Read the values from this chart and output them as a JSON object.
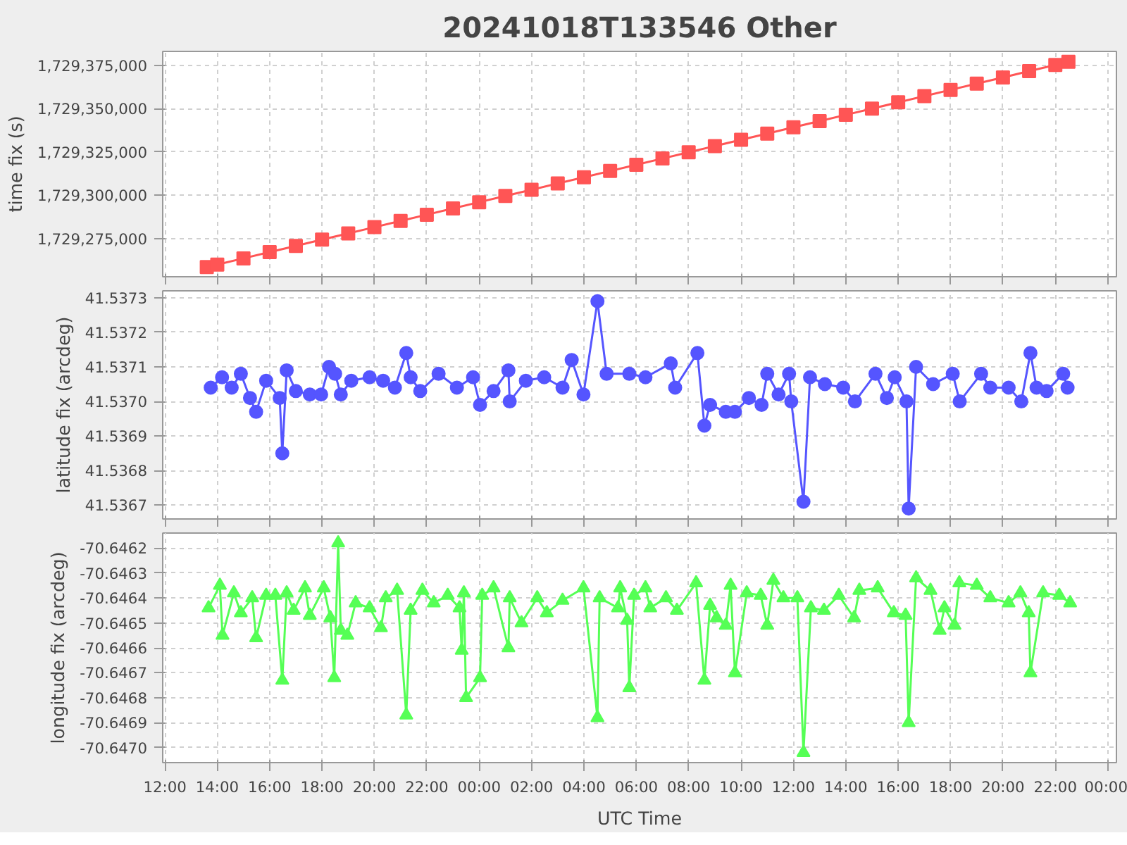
{
  "chart_data": [
    {
      "type": "line",
      "title": "20241018T133546 Other",
      "ylabel": "time fix (s)",
      "marker": "square",
      "grid": true,
      "tick_labels": "y",
      "xlim": [
        "2024-10-18T11:55",
        "2024-10-20T00:20"
      ],
      "xticks": [
        {
          "value": "2024-10-18T12:00",
          "label": null
        },
        {
          "value": "2024-10-18T14:00",
          "label": null
        },
        {
          "value": "2024-10-18T16:00",
          "label": null
        },
        {
          "value": "2024-10-18T18:00",
          "label": null
        },
        {
          "value": "2024-10-18T20:00",
          "label": null
        },
        {
          "value": "2024-10-18T22:00",
          "label": null
        },
        {
          "value": "2024-10-19T00:00",
          "label": null
        },
        {
          "value": "2024-10-19T02:00",
          "label": null
        },
        {
          "value": "2024-10-19T04:00",
          "label": null
        },
        {
          "value": "2024-10-19T06:00",
          "label": null
        },
        {
          "value": "2024-10-19T08:00",
          "label": null
        },
        {
          "value": "2024-10-19T10:00",
          "label": null
        },
        {
          "value": "2024-10-19T12:00",
          "label": null
        },
        {
          "value": "2024-10-19T14:00",
          "label": null
        },
        {
          "value": "2024-10-19T16:00",
          "label": null
        },
        {
          "value": "2024-10-19T18:00",
          "label": null
        },
        {
          "value": "2024-10-19T20:00",
          "label": null
        },
        {
          "value": "2024-10-19T22:00",
          "label": null
        },
        {
          "value": "2024-10-20T00:00",
          "label": null
        }
      ],
      "ylim": [
        1729253000,
        1729383000
      ],
      "yticks": [
        {
          "value": 1729275000,
          "label": "1,729,275,000"
        },
        {
          "value": 1729300000,
          "label": "1,729,300,000"
        },
        {
          "value": 1729325000,
          "label": "1,729,325,000"
        },
        {
          "value": 1729350000,
          "label": "1,729,350,000"
        },
        {
          "value": 1729375000,
          "label": "1,729,375,000"
        }
      ],
      "series": [
        {
          "color": "#ff5555",
          "x": [
            "2024-10-18T13:36",
            "2024-10-18T14:00",
            "2024-10-18T15:00",
            "2024-10-18T16:00",
            "2024-10-18T17:00",
            "2024-10-18T18:00",
            "2024-10-18T19:00",
            "2024-10-18T20:00",
            "2024-10-18T21:00",
            "2024-10-18T22:00",
            "2024-10-18T23:00",
            "2024-10-19T00:00",
            "2024-10-19T01:00",
            "2024-10-19T02:00",
            "2024-10-19T03:00",
            "2024-10-19T04:00",
            "2024-10-19T05:00",
            "2024-10-19T06:00",
            "2024-10-19T07:00",
            "2024-10-19T08:00",
            "2024-10-19T09:00",
            "2024-10-19T10:00",
            "2024-10-19T11:00",
            "2024-10-19T12:00",
            "2024-10-19T13:00",
            "2024-10-19T14:00",
            "2024-10-19T15:00",
            "2024-10-19T16:00",
            "2024-10-19T17:00",
            "2024-10-19T18:00",
            "2024-10-19T19:00",
            "2024-10-19T20:00",
            "2024-10-19T21:00",
            "2024-10-19T22:00",
            "2024-10-19T22:30"
          ],
          "values": [
            1729258560,
            1729260000,
            1729263600,
            1729267200,
            1729270800,
            1729274400,
            1729278000,
            1729281600,
            1729285200,
            1729288800,
            1729292400,
            1729296000,
            1729299600,
            1729303200,
            1729306800,
            1729310400,
            1729314000,
            1729317600,
            1729321200,
            1729324800,
            1729328400,
            1729332000,
            1729335600,
            1729339200,
            1729342800,
            1729346400,
            1729350000,
            1729353600,
            1729357200,
            1729360800,
            1729364400,
            1729368000,
            1729371600,
            1729375200,
            1729377000
          ]
        }
      ]
    },
    {
      "type": "line",
      "ylabel": "latitude fix (arcdeg)",
      "marker": "circle",
      "grid": true,
      "tick_labels": "y",
      "xlim": [
        "2024-10-18T11:55",
        "2024-10-20T00:20"
      ],
      "xticks": [
        {
          "value": "2024-10-18T12:00",
          "label": null
        },
        {
          "value": "2024-10-18T14:00",
          "label": null
        },
        {
          "value": "2024-10-18T16:00",
          "label": null
        },
        {
          "value": "2024-10-18T18:00",
          "label": null
        },
        {
          "value": "2024-10-18T20:00",
          "label": null
        },
        {
          "value": "2024-10-18T22:00",
          "label": null
        },
        {
          "value": "2024-10-19T00:00",
          "label": null
        },
        {
          "value": "2024-10-19T02:00",
          "label": null
        },
        {
          "value": "2024-10-19T04:00",
          "label": null
        },
        {
          "value": "2024-10-19T06:00",
          "label": null
        },
        {
          "value": "2024-10-19T08:00",
          "label": null
        },
        {
          "value": "2024-10-19T10:00",
          "label": null
        },
        {
          "value": "2024-10-19T12:00",
          "label": null
        },
        {
          "value": "2024-10-19T14:00",
          "label": null
        },
        {
          "value": "2024-10-19T16:00",
          "label": null
        },
        {
          "value": "2024-10-19T18:00",
          "label": null
        },
        {
          "value": "2024-10-19T20:00",
          "label": null
        },
        {
          "value": "2024-10-19T22:00",
          "label": null
        },
        {
          "value": "2024-10-20T00:00",
          "label": null
        }
      ],
      "ylim": [
        41.53666,
        41.53732
      ],
      "yticks": [
        41.5367,
        41.5368,
        41.5369,
        {
          "value": 41.537,
          "label": "41.5370"
        },
        41.5371,
        41.5372,
        41.5373
      ],
      "series": [
        {
          "color": "#5555ff",
          "x": [
            "2024-10-18T13:45",
            "2024-10-18T14:11",
            "2024-10-18T14:33",
            "2024-10-18T14:54",
            "2024-10-18T15:15",
            "2024-10-18T15:29",
            "2024-10-18T15:52",
            "2024-10-18T16:23",
            "2024-10-18T16:29",
            "2024-10-18T16:39",
            "2024-10-18T17:00",
            "2024-10-18T17:32",
            "2024-10-18T17:58",
            "2024-10-18T18:16",
            "2024-10-18T18:30",
            "2024-10-18T18:43",
            "2024-10-18T19:07",
            "2024-10-18T19:49",
            "2024-10-18T20:20",
            "2024-10-18T20:47",
            "2024-10-18T21:13",
            "2024-10-18T21:23",
            "2024-10-18T21:45",
            "2024-10-18T22:27",
            "2024-10-18T23:09",
            "2024-10-18T23:46",
            "2024-10-19T00:02",
            "2024-10-19T00:33",
            "2024-10-19T01:07",
            "2024-10-19T01:10",
            "2024-10-19T01:47",
            "2024-10-19T02:29",
            "2024-10-19T03:11",
            "2024-10-19T03:32",
            "2024-10-19T03:59",
            "2024-10-19T04:31",
            "2024-10-19T04:52",
            "2024-10-19T05:44",
            "2024-10-19T06:21",
            "2024-10-19T07:19",
            "2024-10-19T07:29",
            "2024-10-19T08:20",
            "2024-10-19T08:36",
            "2024-10-19T08:49",
            "2024-10-19T09:25",
            "2024-10-19T09:46",
            "2024-10-19T10:18",
            "2024-10-19T10:47",
            "2024-10-19T11:00",
            "2024-10-19T11:26",
            "2024-10-19T11:50",
            "2024-10-19T11:55",
            "2024-10-19T12:23",
            "2024-10-19T12:38",
            "2024-10-19T13:12",
            "2024-10-19T13:54",
            "2024-10-19T14:21",
            "2024-10-19T15:08",
            "2024-10-19T15:34",
            "2024-10-19T15:52",
            "2024-10-19T16:19",
            "2024-10-19T16:24",
            "2024-10-19T16:41",
            "2024-10-19T17:20",
            "2024-10-19T18:05",
            "2024-10-19T18:21",
            "2024-10-19T19:10",
            "2024-10-19T19:31",
            "2024-10-19T20:13",
            "2024-10-19T20:42",
            "2024-10-19T21:03",
            "2024-10-19T21:17",
            "2024-10-19T21:40",
            "2024-10-19T22:18",
            "2024-10-19T22:28"
          ],
          "values": [
            41.53704,
            41.53707,
            41.53704,
            41.53708,
            41.53701,
            41.53697,
            41.53706,
            41.53701,
            41.53685,
            41.53709,
            41.53703,
            41.53702,
            41.53702,
            41.5371,
            41.53708,
            41.53702,
            41.53706,
            41.53707,
            41.53706,
            41.53704,
            41.53714,
            41.53707,
            41.53703,
            41.53708,
            41.53704,
            41.53707,
            41.53699,
            41.53703,
            41.53709,
            41.537,
            41.53706,
            41.53707,
            41.53704,
            41.53712,
            41.53702,
            41.53729,
            41.53708,
            41.53708,
            41.53707,
            41.53711,
            41.53704,
            41.53714,
            41.53693,
            41.53699,
            41.53697,
            41.53697,
            41.53701,
            41.53699,
            41.53708,
            41.53702,
            41.53708,
            41.537,
            41.53671,
            41.53707,
            41.53705,
            41.53704,
            41.537,
            41.53708,
            41.53701,
            41.53707,
            41.537,
            41.53669,
            41.5371,
            41.53705,
            41.53708,
            41.537,
            41.53708,
            41.53704,
            41.53704,
            41.537,
            41.53714,
            41.53704,
            41.53703,
            41.53708,
            41.53704
          ]
        }
      ]
    },
    {
      "type": "line",
      "xlabel": "UTC Time",
      "ylabel": "longitude fix (arcdeg)",
      "marker": "triangle",
      "grid": true,
      "xlim": [
        "2024-10-18T11:55",
        "2024-10-20T00:20"
      ],
      "xticks": [
        {
          "value": "2024-10-18T12:00",
          "label": "12:00"
        },
        {
          "value": "2024-10-18T14:00",
          "label": "14:00"
        },
        {
          "value": "2024-10-18T16:00",
          "label": "16:00"
        },
        {
          "value": "2024-10-18T18:00",
          "label": "18:00"
        },
        {
          "value": "2024-10-18T20:00",
          "label": "20:00"
        },
        {
          "value": "2024-10-18T22:00",
          "label": "22:00"
        },
        {
          "value": "2024-10-19T00:00",
          "label": "00:00"
        },
        {
          "value": "2024-10-19T02:00",
          "label": "02:00"
        },
        {
          "value": "2024-10-19T04:00",
          "label": "04:00"
        },
        {
          "value": "2024-10-19T06:00",
          "label": "06:00"
        },
        {
          "value": "2024-10-19T08:00",
          "label": "08:00"
        },
        {
          "value": "2024-10-19T10:00",
          "label": "10:00"
        },
        {
          "value": "2024-10-19T12:00",
          "label": "12:00"
        },
        {
          "value": "2024-10-19T14:00",
          "label": "14:00"
        },
        {
          "value": "2024-10-19T16:00",
          "label": "16:00"
        },
        {
          "value": "2024-10-19T18:00",
          "label": "18:00"
        },
        {
          "value": "2024-10-19T20:00",
          "label": "20:00"
        },
        {
          "value": "2024-10-19T22:00",
          "label": "22:00"
        },
        {
          "value": "2024-10-20T00:00",
          "label": "00:00"
        }
      ],
      "ylim": [
        -70.64706,
        -70.64614
      ],
      "yticks": [
        {
          "value": -70.647,
          "label": "-70.6470"
        },
        -70.6469,
        -70.6468,
        -70.6467,
        -70.6466,
        -70.6465,
        -70.6464,
        -70.6463,
        -70.6462
      ],
      "series": [
        {
          "color": "#55ff55",
          "x": [
            "2024-10-18T13:40",
            "2024-10-18T14:06",
            "2024-10-18T14:12",
            "2024-10-18T14:38",
            "2024-10-18T14:54",
            "2024-10-18T15:20",
            "2024-10-18T15:29",
            "2024-10-18T15:52",
            "2024-10-18T16:13",
            "2024-10-18T16:29",
            "2024-10-18T16:39",
            "2024-10-18T16:55",
            "2024-10-18T17:21",
            "2024-10-18T17:32",
            "2024-10-18T18:04",
            "2024-10-18T18:19",
            "2024-10-18T18:28",
            "2024-10-18T18:37",
            "2024-10-18T18:43",
            "2024-10-18T18:58",
            "2024-10-18T19:17",
            "2024-10-18T19:49",
            "2024-10-18T20:15",
            "2024-10-18T20:26",
            "2024-10-18T20:52",
            "2024-10-18T21:13",
            "2024-10-18T21:23",
            "2024-10-18T21:50",
            "2024-10-18T22:16",
            "2024-10-18T22:48",
            "2024-10-18T23:15",
            "2024-10-18T23:20",
            "2024-10-18T23:25",
            "2024-10-18T23:30",
            "2024-10-19T00:02",
            "2024-10-19T00:07",
            "2024-10-19T00:33",
            "2024-10-19T01:07",
            "2024-10-19T01:10",
            "2024-10-19T01:37",
            "2024-10-19T02:13",
            "2024-10-19T02:35",
            "2024-10-19T03:11",
            "2024-10-19T03:59",
            "2024-10-19T04:31",
            "2024-10-19T04:36",
            "2024-10-19T05:18",
            "2024-10-19T05:23",
            "2024-10-19T05:39",
            "2024-10-19T05:44",
            "2024-10-19T05:55",
            "2024-10-19T06:21",
            "2024-10-19T06:32",
            "2024-10-19T07:08",
            "2024-10-19T07:33",
            "2024-10-19T08:17",
            "2024-10-19T08:36",
            "2024-10-19T08:49",
            "2024-10-19T09:04",
            "2024-10-19T09:25",
            "2024-10-19T09:36",
            "2024-10-19T09:46",
            "2024-10-19T10:13",
            "2024-10-19T10:45",
            "2024-10-19T11:00",
            "2024-10-19T11:14",
            "2024-10-19T11:37",
            "2024-10-19T12:09",
            "2024-10-19T12:23",
            "2024-10-19T12:40",
            "2024-10-19T13:10",
            "2024-10-19T13:44",
            "2024-10-19T14:19",
            "2024-10-19T14:31",
            "2024-10-19T15:13",
            "2024-10-19T15:50",
            "2024-10-19T16:17",
            "2024-10-19T16:24",
            "2024-10-19T16:41",
            "2024-10-19T17:14",
            "2024-10-19T17:35",
            "2024-10-19T17:46",
            "2024-10-19T18:09",
            "2024-10-19T18:20",
            "2024-10-19T19:00",
            "2024-10-19T19:31",
            "2024-10-19T20:13",
            "2024-10-19T20:40",
            "2024-10-19T20:59",
            "2024-10-19T21:03",
            "2024-10-19T21:32",
            "2024-10-19T22:09",
            "2024-10-19T22:34"
          ],
          "values": [
            -70.64644,
            -70.64635,
            -70.64655,
            -70.64638,
            -70.64646,
            -70.6464,
            -70.64656,
            -70.64639,
            -70.64639,
            -70.64673,
            -70.64638,
            -70.64645,
            -70.64636,
            -70.64647,
            -70.64636,
            -70.64648,
            -70.64672,
            -70.64618,
            -70.64653,
            -70.64655,
            -70.64642,
            -70.64644,
            -70.64652,
            -70.6464,
            -70.64637,
            -70.64687,
            -70.64645,
            -70.64637,
            -70.64642,
            -70.64639,
            -70.64644,
            -70.64661,
            -70.64638,
            -70.6468,
            -70.64672,
            -70.64639,
            -70.64636,
            -70.6466,
            -70.6464,
            -70.6465,
            -70.6464,
            -70.64646,
            -70.64641,
            -70.64636,
            -70.64688,
            -70.6464,
            -70.64644,
            -70.64636,
            -70.64649,
            -70.64676,
            -70.64639,
            -70.64636,
            -70.64644,
            -70.6464,
            -70.64645,
            -70.64634,
            -70.64673,
            -70.64643,
            -70.64648,
            -70.64651,
            -70.64635,
            -70.6467,
            -70.64638,
            -70.64639,
            -70.64651,
            -70.64633,
            -70.6464,
            -70.6464,
            -70.64702,
            -70.64644,
            -70.64645,
            -70.64639,
            -70.64648,
            -70.64637,
            -70.64636,
            -70.64646,
            -70.64647,
            -70.6469,
            -70.64632,
            -70.64637,
            -70.64653,
            -70.64644,
            -70.64651,
            -70.64634,
            -70.64635,
            -70.6464,
            -70.64642,
            -70.64638,
            -70.64646,
            -70.6467,
            -70.64638,
            -70.64639,
            -70.64642
          ]
        }
      ]
    }
  ]
}
